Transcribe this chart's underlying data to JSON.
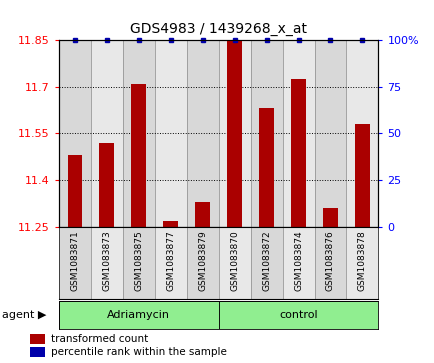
{
  "title": "GDS4983 / 1439268_x_at",
  "samples": [
    "GSM1083871",
    "GSM1083873",
    "GSM1083875",
    "GSM1083877",
    "GSM1083879",
    "GSM1083870",
    "GSM1083872",
    "GSM1083874",
    "GSM1083876",
    "GSM1083878"
  ],
  "red_values": [
    11.48,
    11.52,
    11.71,
    11.27,
    11.33,
    11.855,
    11.63,
    11.725,
    11.31,
    11.58
  ],
  "blue_values": [
    100,
    100,
    100,
    100,
    100,
    100,
    100,
    100,
    100,
    100
  ],
  "ylim_left": [
    11.25,
    11.85
  ],
  "ylim_right": [
    0,
    100
  ],
  "yticks_left": [
    11.25,
    11.4,
    11.55,
    11.7,
    11.85
  ],
  "yticks_right": [
    0,
    25,
    50,
    75,
    100
  ],
  "bar_color": "#AA0000",
  "dot_color": "#0000AA",
  "col_bg_odd": "#d8d8d8",
  "col_bg_even": "#e8e8e8",
  "group1_label": "Adriamycin",
  "group2_label": "control",
  "group_color": "#90EE90",
  "legend_items": [
    {
      "label": "transformed count",
      "color": "#AA0000"
    },
    {
      "label": "percentile rank within the sample",
      "color": "#0000AA"
    }
  ]
}
